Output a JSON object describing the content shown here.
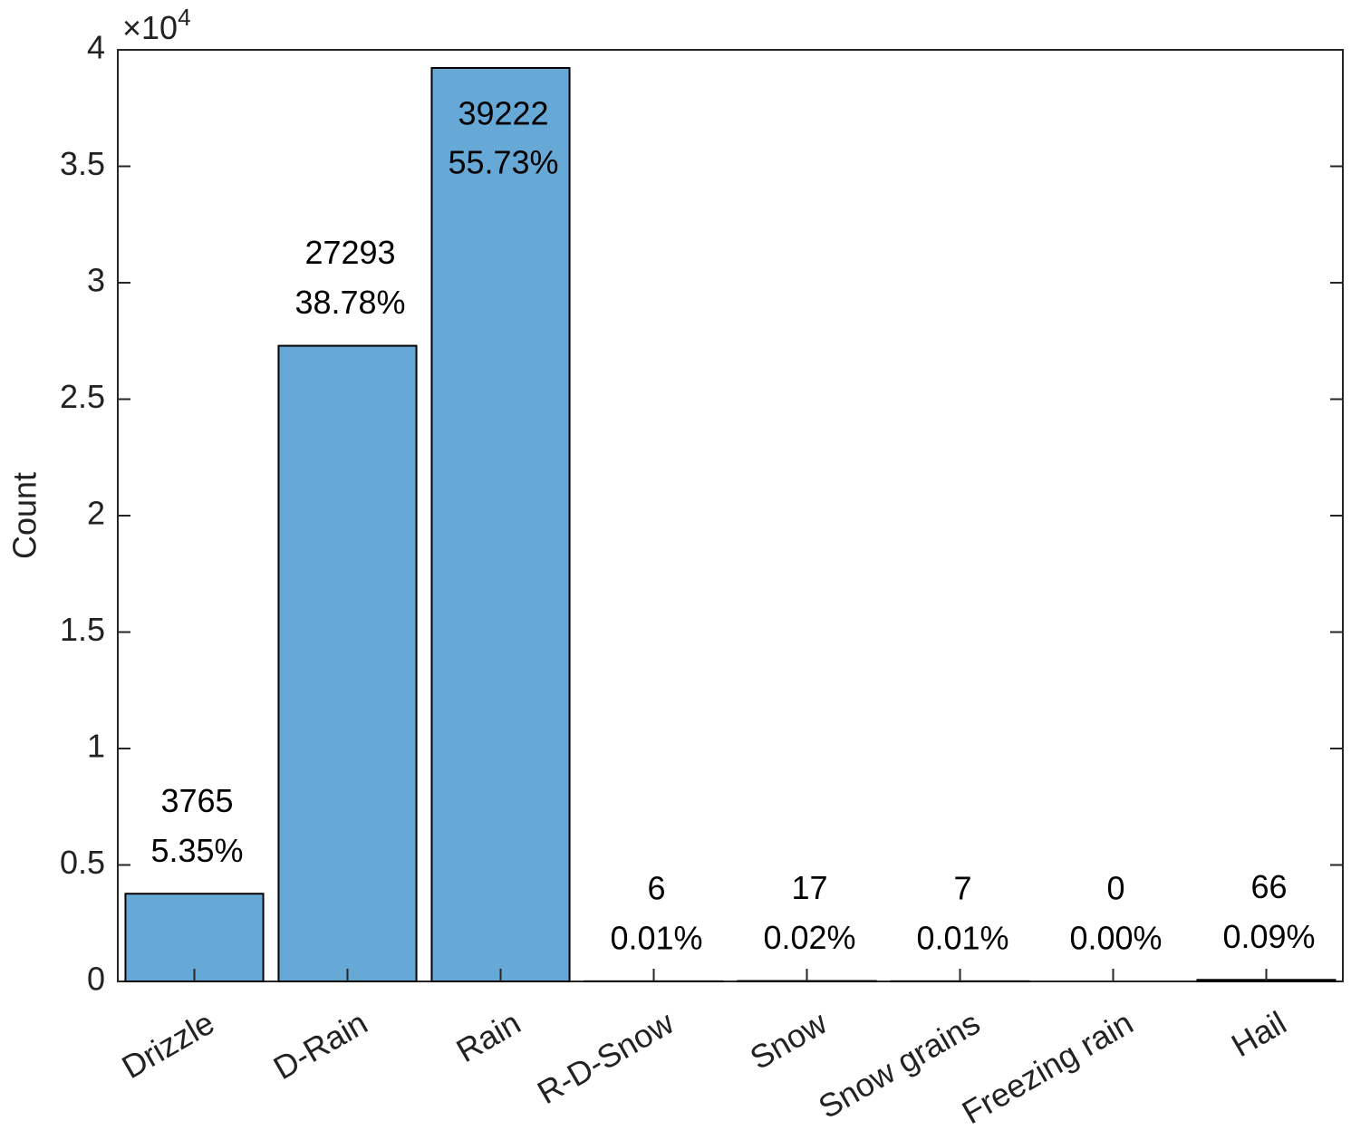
{
  "chart_data": {
    "type": "bar",
    "y_label": "Count",
    "y_multiplier": "×10",
    "y_multiplier_exponent": "4",
    "categories": [
      "Drizzle",
      "D-Rain",
      "Rain",
      "R-D-Snow",
      "Snow",
      "Snow grains",
      "Freezing rain",
      "Hail"
    ],
    "values": [
      3765,
      27293,
      39222,
      6,
      17,
      7,
      0,
      66
    ],
    "percent_labels": [
      "5.35%",
      "38.78%",
      "55.73%",
      "0.01%",
      "0.02%",
      "0.01%",
      "0.00%",
      "0.09%"
    ],
    "color": "#66a9d7",
    "ylim": [
      0,
      40000
    ],
    "yticks": [
      0,
      {
        "value": 5000,
        "label": "0.5"
      },
      {
        "value": 10000,
        "label": "1"
      },
      {
        "value": 15000,
        "label": "1.5"
      },
      {
        "value": 20000,
        "label": "2"
      },
      {
        "value": 25000,
        "label": "2.5"
      },
      {
        "value": 30000,
        "label": "3"
      },
      {
        "value": 35000,
        "label": "3.5"
      },
      {
        "value": 40000,
        "label": "4"
      }
    ],
    "grid": false
  }
}
